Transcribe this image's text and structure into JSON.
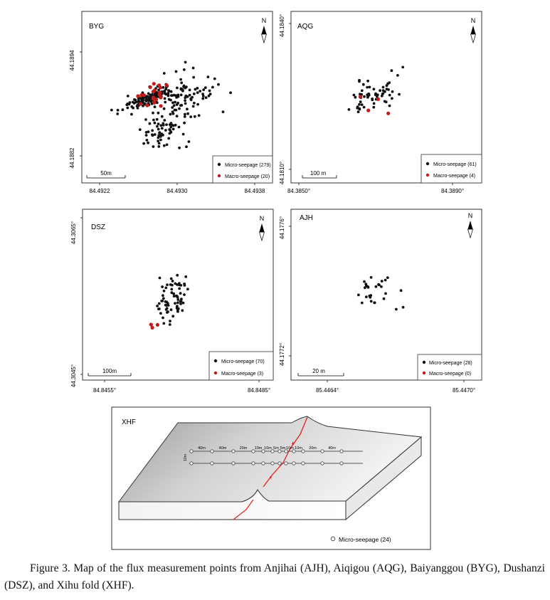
{
  "figure": {
    "caption": "Figure 3. Map of the flux measurement points from Anjihai (AJH), Aiqigou (AQG), Baiyanggou (BYG), Dushanzi (DSZ), and Xihu fold (XHF).",
    "north_label": "N",
    "colors": {
      "micro": "#111111",
      "macro": "#c41a1a",
      "fault": "#e02020",
      "frame": "#333333"
    }
  },
  "chart_data": [
    {
      "type": "scatter",
      "panel": "BYG",
      "x_ticks": [
        "84.4922",
        "84.4930",
        "84.4938"
      ],
      "y_ticks": [
        "44.1894",
        "44.1882"
      ],
      "scale_bar": "50m",
      "legend": [
        {
          "marker": "micro",
          "label": "Micro-seepage (279)"
        },
        {
          "marker": "macro",
          "label": "Macro-seepage (20)"
        }
      ],
      "counts": {
        "micro": 279,
        "macro": 20
      }
    },
    {
      "type": "scatter",
      "panel": "AQG",
      "x_ticks": [
        "84.3850°",
        "84.3890°"
      ],
      "y_ticks": [
        "44.1840°",
        "44.1810°"
      ],
      "scale_bar": "100 m",
      "legend": [
        {
          "marker": "micro",
          "label": "Micro-seepage (61)"
        },
        {
          "marker": "macro",
          "label": "Macro-seepage (4)"
        }
      ],
      "counts": {
        "micro": 61,
        "macro": 4
      }
    },
    {
      "type": "scatter",
      "panel": "DSZ",
      "x_ticks": [
        "84.8455°",
        "84.8485°"
      ],
      "y_ticks": [
        "44.3065°",
        "44.3045°"
      ],
      "scale_bar": "100m",
      "legend": [
        {
          "marker": "micro",
          "label": "Micro-seepage (70)"
        },
        {
          "marker": "macro",
          "label": "Macro-seepage (3)"
        }
      ],
      "counts": {
        "micro": 70,
        "macro": 3
      }
    },
    {
      "type": "scatter",
      "panel": "AJH",
      "x_ticks": [
        "85.4464°",
        "85.4470°"
      ],
      "y_ticks": [
        "44.1776°",
        "44.1772°"
      ],
      "scale_bar": "20 m",
      "legend": [
        {
          "marker": "micro",
          "label": "Micro-seepage (28)"
        },
        {
          "marker": "macro",
          "label": "Macro-seepage (0)"
        }
      ],
      "counts": {
        "micro": 28,
        "macro": 0
      }
    },
    {
      "type": "scatter",
      "panel": "XHF",
      "spacing_labels": [
        "40m",
        "40m",
        "20m",
        "10m",
        "10m",
        "5m",
        "5m",
        "10m",
        "10m",
        "20m",
        "40m"
      ],
      "line_offset_label": "10m",
      "legend": [
        {
          "marker": "open",
          "label": "Micro-seepage (24)"
        }
      ],
      "counts": {
        "micro": 24
      }
    }
  ]
}
